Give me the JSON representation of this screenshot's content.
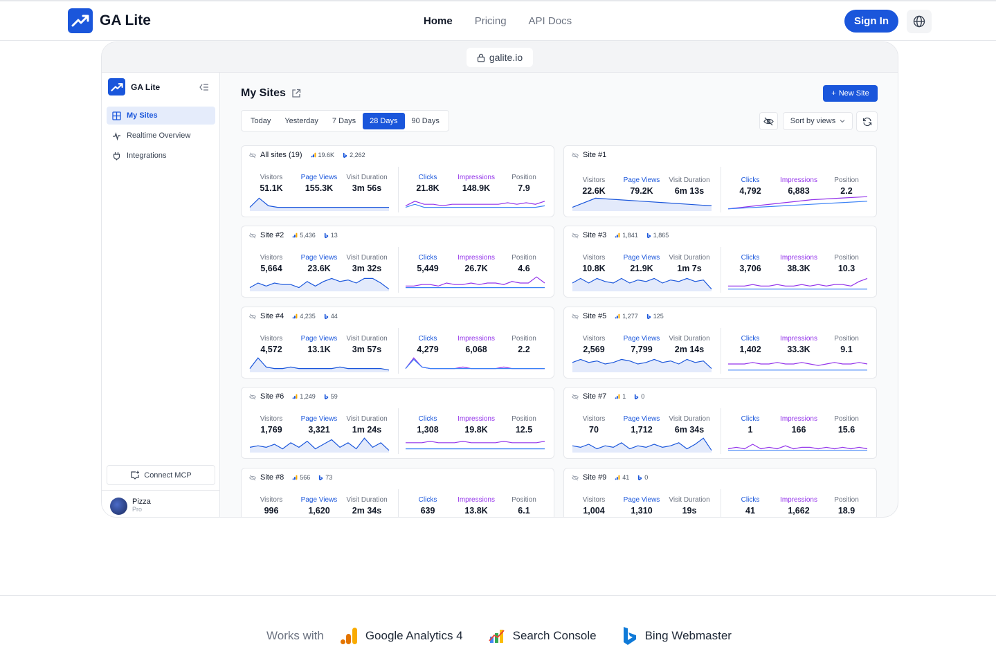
{
  "header": {
    "brand": "GA Lite",
    "nav": [
      {
        "label": "Home",
        "active": true
      },
      {
        "label": "Pricing",
        "active": false
      },
      {
        "label": "API Docs",
        "active": false
      }
    ],
    "signin_label": "Sign In",
    "globe_icon": "globe-icon"
  },
  "browser": {
    "url": "galite.io"
  },
  "sidebar": {
    "brand": "GA Lite",
    "items": [
      {
        "label": "My Sites",
        "icon": "grid-icon",
        "active": true
      },
      {
        "label": "Realtime Overview",
        "icon": "pulse-icon",
        "active": false
      },
      {
        "label": "Integrations",
        "icon": "plug-icon",
        "active": false
      }
    ],
    "connect_label": "Connect MCP",
    "user": {
      "name": "Pizza",
      "plan": "Pro"
    }
  },
  "main": {
    "title": "My Sites",
    "new_site_label": "New Site",
    "ranges": [
      "Today",
      "Yesterday",
      "7 Days",
      "28 Days",
      "90 Days"
    ],
    "active_range": "28 Days",
    "sort_label": "Sort by views"
  },
  "metric_labels": [
    "Visitors",
    "Page Views",
    "Visit Duration",
    "Clicks",
    "Impressions",
    "Position"
  ],
  "sites": [
    {
      "name": "All sites (19)",
      "ga": "19.6K",
      "bing": "2,262",
      "visitors": "51.1K",
      "pageviews": "155.3K",
      "duration": "3m 56s",
      "clicks": "21.8K",
      "impressions": "148.9K",
      "position": "7.9",
      "pv_series": [
        2,
        8,
        3,
        2,
        2,
        2,
        2,
        2,
        2,
        2,
        2,
        2,
        2,
        2,
        2,
        2
      ],
      "imp_series": [
        3,
        6,
        4,
        4,
        3,
        4,
        4,
        4,
        4,
        4,
        4,
        5,
        4,
        5,
        4,
        6
      ],
      "clk_series": [
        2,
        4,
        2,
        2,
        2,
        2,
        2,
        2,
        2,
        2,
        2,
        2,
        2,
        2,
        2,
        3
      ]
    },
    {
      "name": "Site #1",
      "ga": "",
      "bing": "",
      "visitors": "22.6K",
      "pageviews": "79.2K",
      "duration": "6m 13s",
      "clicks": "4,792",
      "impressions": "6,883",
      "position": "2.2",
      "pv_series": [
        2,
        8,
        7,
        6,
        5,
        4,
        3
      ],
      "imp_series": [
        1,
        3,
        5,
        7,
        8,
        9
      ],
      "clk_series": [
        1,
        2,
        3,
        4,
        5,
        6
      ]
    },
    {
      "name": "Site #2",
      "ga": "5,436",
      "bing": "13",
      "visitors": "5,664",
      "pageviews": "23.6K",
      "duration": "3m 32s",
      "clicks": "5,449",
      "impressions": "26.7K",
      "position": "4.6",
      "pv_series": [
        2,
        5,
        3,
        5,
        4,
        4,
        2,
        6,
        3,
        6,
        8,
        6,
        7,
        5,
        8,
        8,
        5,
        1
      ],
      "imp_series": [
        3,
        3,
        4,
        4,
        3,
        5,
        4,
        4,
        5,
        4,
        5,
        5,
        4,
        6,
        5,
        5,
        9,
        5
      ],
      "clk_series": [
        2,
        2,
        2,
        2,
        2,
        2,
        2,
        2,
        2,
        2,
        2,
        2,
        2,
        2,
        2,
        2,
        2,
        2
      ]
    },
    {
      "name": "Site #3",
      "ga": "1,841",
      "bing": "1,865",
      "visitors": "10.8K",
      "pageviews": "21.9K",
      "duration": "1m 7s",
      "clicks": "3,706",
      "impressions": "38.3K",
      "position": "10.3",
      "pv_series": [
        5,
        8,
        5,
        8,
        6,
        5,
        8,
        5,
        7,
        6,
        8,
        5,
        7,
        6,
        8,
        6,
        7,
        1
      ],
      "imp_series": [
        3,
        3,
        3,
        4,
        3,
        3,
        4,
        3,
        3,
        4,
        3,
        4,
        3,
        4,
        4,
        3,
        6,
        8
      ],
      "clk_series": [
        1,
        1,
        1,
        1,
        1,
        1,
        1,
        1,
        1,
        1,
        1,
        1,
        1,
        1,
        1,
        1,
        1,
        1
      ]
    },
    {
      "name": "Site #4",
      "ga": "4,235",
      "bing": "44",
      "visitors": "4,572",
      "pageviews": "13.1K",
      "duration": "3m 57s",
      "clicks": "4,279",
      "impressions": "6,068",
      "position": "2.2",
      "pv_series": [
        2,
        9,
        3,
        2,
        2,
        3,
        2,
        2,
        2,
        2,
        2,
        3,
        2,
        2,
        2,
        2,
        2,
        1
      ],
      "imp_series": [
        2,
        9,
        3,
        2,
        2,
        2,
        2,
        3,
        2,
        2,
        2,
        2,
        3,
        2,
        2,
        2,
        2,
        2
      ],
      "clk_series": [
        2,
        8,
        3,
        2,
        2,
        2,
        2,
        2,
        2,
        2,
        2,
        2,
        2,
        2,
        2,
        2,
        2,
        2
      ]
    },
    {
      "name": "Site #5",
      "ga": "1,277",
      "bing": "125",
      "visitors": "2,569",
      "pageviews": "7,799",
      "duration": "2m 14s",
      "clicks": "1,402",
      "impressions": "33.3K",
      "position": "9.1",
      "pv_series": [
        6,
        8,
        6,
        7,
        5,
        6,
        8,
        7,
        5,
        6,
        8,
        6,
        7,
        5,
        8,
        6,
        7,
        2
      ],
      "imp_series": [
        5,
        5,
        5,
        6,
        5,
        5,
        6,
        5,
        5,
        6,
        5,
        4,
        5,
        6,
        5,
        5,
        6,
        5
      ],
      "clk_series": [
        1,
        1,
        1,
        1,
        1,
        1,
        1,
        1,
        1,
        1,
        1,
        1,
        1,
        1,
        1,
        1,
        1,
        1
      ]
    },
    {
      "name": "Site #6",
      "ga": "1,249",
      "bing": "59",
      "visitors": "1,769",
      "pageviews": "3,321",
      "duration": "1m 24s",
      "clicks": "1,308",
      "impressions": "19.8K",
      "position": "12.5",
      "pv_series": [
        3,
        4,
        3,
        5,
        2,
        6,
        3,
        7,
        2,
        5,
        8,
        3,
        6,
        2,
        9,
        3,
        6,
        1
      ],
      "imp_series": [
        6,
        6,
        6,
        7,
        6,
        6,
        6,
        7,
        6,
        6,
        6,
        6,
        7,
        6,
        6,
        6,
        6,
        7
      ],
      "clk_series": [
        2,
        2,
        2,
        2,
        2,
        2,
        2,
        2,
        2,
        2,
        2,
        2,
        2,
        2,
        2,
        2,
        2,
        2
      ]
    },
    {
      "name": "Site #7",
      "ga": "1",
      "bing": "0",
      "visitors": "70",
      "pageviews": "1,712",
      "duration": "6m 34s",
      "clicks": "1",
      "impressions": "166",
      "position": "15.6",
      "pv_series": [
        4,
        3,
        5,
        2,
        4,
        3,
        6,
        2,
        4,
        3,
        5,
        3,
        4,
        6,
        2,
        5,
        9,
        1
      ],
      "imp_series": [
        2,
        3,
        2,
        5,
        2,
        3,
        2,
        4,
        2,
        3,
        3,
        2,
        3,
        2,
        3,
        2,
        3,
        2
      ],
      "clk_series": [
        1,
        1,
        1,
        1,
        1,
        1,
        1,
        1,
        1,
        1,
        1,
        1,
        1,
        1,
        1,
        1,
        1,
        1
      ]
    },
    {
      "name": "Site #8",
      "ga": "566",
      "bing": "73",
      "visitors": "996",
      "pageviews": "1,620",
      "duration": "2m 34s",
      "clicks": "639",
      "impressions": "13.8K",
      "position": "6.1",
      "pv_series": [],
      "imp_series": [],
      "clk_series": []
    },
    {
      "name": "Site #9",
      "ga": "41",
      "bing": "0",
      "visitors": "1,004",
      "pageviews": "1,310",
      "duration": "19s",
      "clicks": "41",
      "impressions": "1,662",
      "position": "18.9",
      "pv_series": [],
      "imp_series": [],
      "clk_series": []
    }
  ],
  "footer": {
    "works_with": "Works with",
    "integrations": [
      "Google Analytics 4",
      "Search Console",
      "Bing Webmaster"
    ]
  },
  "colors": {
    "accent": "#1a56db",
    "purple": "#9333ea"
  }
}
